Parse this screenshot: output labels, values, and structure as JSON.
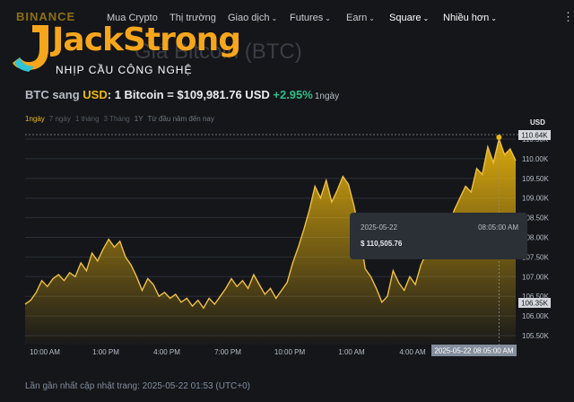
{
  "nav": {
    "logo": "BINANCE",
    "items": [
      {
        "label": "Mua Crypto",
        "caret": false
      },
      {
        "label": "Thị trường",
        "caret": false
      },
      {
        "label": "Giao dịch",
        "caret": true
      },
      {
        "label": "Futures",
        "caret": true
      },
      {
        "label": "Earn",
        "caret": true
      },
      {
        "label": "Square",
        "caret": true
      },
      {
        "label": "Nhiều hơn",
        "caret": true
      }
    ]
  },
  "watermark": {
    "title": "JackStrong",
    "subtitle": "NHỊP CẦU CÔNG NGHỆ"
  },
  "page_title": "Giá Bitcoin (BTC)",
  "price": {
    "from": "BTC",
    "sang": " sang ",
    "to": "USD",
    "text": ": 1 Bitcoin = $109,981.76 USD ",
    "change": "+2.95%",
    "period": "1ngày"
  },
  "ranges": [
    "1ngày",
    "7 ngày",
    "1 tháng",
    "3 Tháng",
    "1Y",
    "Từ đầu năm đến nay"
  ],
  "currency": "USD",
  "tooltip": {
    "date": "2025-05-22",
    "time": "08:05:00 AM",
    "price": "$ 110,505.76"
  },
  "updated": "Lần gần nhất cập nhật trang: 2025-05-22 01:53 (UTC+0)",
  "colors": {
    "accent": "#f0b90b",
    "up": "#2ebd85",
    "line": "#f0c040"
  },
  "chart_data": {
    "type": "area",
    "y_ticks": [
      "110.50K",
      "110.00K",
      "109.50K",
      "109.00K",
      "108.50K",
      "108.00K",
      "107.50K",
      "107.00K",
      "106.50K",
      "106.00K",
      "105.50K"
    ],
    "x_ticks": [
      "10:00 AM",
      "1:00 PM",
      "4:00 PM",
      "7:00 PM",
      "10:00 PM",
      "1:00 AM",
      "4:00 AM",
      "7:00 AM"
    ],
    "ylim": [
      105500,
      110500
    ],
    "high_label": "110.64K",
    "low_label": "106.35K",
    "crosshair_label": "2025-05-22 08:05:00 AM",
    "values": [
      106.3,
      106.4,
      106.6,
      106.9,
      106.75,
      106.95,
      107.05,
      106.9,
      107.1,
      107.0,
      107.35,
      107.15,
      107.6,
      107.4,
      107.7,
      107.95,
      107.75,
      107.9,
      107.5,
      107.3,
      107.0,
      106.65,
      106.95,
      106.8,
      106.5,
      106.6,
      106.45,
      106.55,
      106.35,
      106.45,
      106.25,
      106.4,
      106.2,
      106.45,
      106.3,
      106.5,
      106.7,
      106.95,
      106.75,
      106.9,
      106.7,
      107.05,
      106.8,
      106.55,
      106.7,
      106.45,
      106.65,
      106.85,
      107.35,
      107.75,
      108.2,
      108.7,
      109.3,
      109.0,
      109.45,
      108.9,
      109.2,
      109.55,
      109.35,
      108.8,
      108.1,
      107.2,
      107.0,
      106.7,
      106.35,
      106.5,
      107.15,
      106.85,
      106.65,
      107.0,
      106.8,
      107.3,
      107.6,
      108.0,
      108.3,
      108.55,
      108.3,
      108.7,
      109.0,
      109.3,
      109.15,
      109.75,
      109.6,
      110.3,
      109.9,
      110.5,
      110.1,
      110.25,
      109.95
    ],
    "series": [
      {
        "name": "",
        "values": []
      }
    ]
  }
}
